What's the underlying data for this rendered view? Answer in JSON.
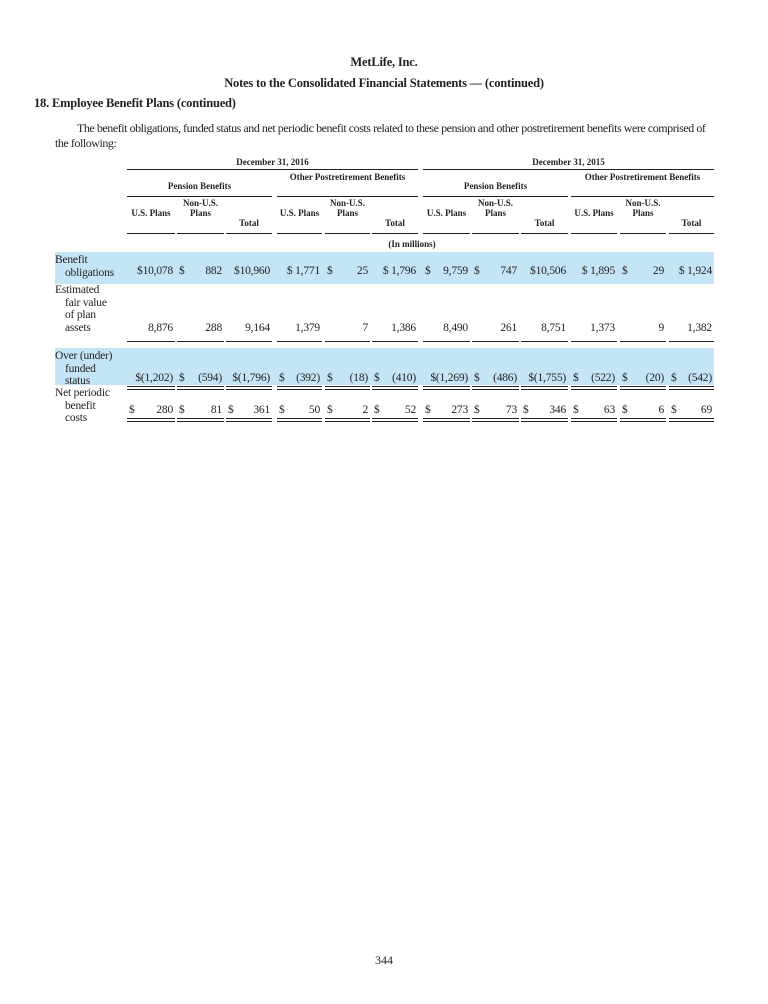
{
  "header": {
    "company": "MetLife, Inc.",
    "subtitle": "Notes to the Consolidated Financial Statements — (continued)"
  },
  "section_title": "18. Employee Benefit Plans (continued)",
  "paragraph": "The benefit obligations, funded status and net periodic benefit costs related to these pension and other postretirement benefits were comprised of the following:",
  "table": {
    "periods": [
      "December 31, 2016",
      "December 31, 2015"
    ],
    "groups": [
      "Pension Benefits",
      "Other Postretirement Benefits"
    ],
    "columns": [
      "U.S. Plans",
      "Non-U.S. Plans",
      "Total"
    ],
    "units": "(In millions)",
    "highlight_color": "#c4e5f5",
    "rows": [
      {
        "label": [
          "Benefit",
          "obligations"
        ],
        "highlight": true,
        "cells": [
          [
            "",
            "$10,078"
          ],
          [
            "$",
            "882"
          ],
          [
            "",
            "$10,960"
          ],
          [
            "",
            "$ 1,771"
          ],
          [
            "$",
            "25"
          ],
          [
            "",
            "$ 1,796"
          ],
          [
            "$",
            "9,759"
          ],
          [
            "$",
            "747"
          ],
          [
            "",
            "$10,506"
          ],
          [
            "",
            "$ 1,895"
          ],
          [
            "$",
            "29"
          ],
          [
            "",
            "$ 1,924"
          ]
        ]
      },
      {
        "label": [
          "Estimated",
          "fair value",
          "of plan",
          "assets"
        ],
        "highlight": false,
        "cells": [
          [
            "",
            "8,876"
          ],
          [
            "",
            "288"
          ],
          [
            "",
            "9,164"
          ],
          [
            "",
            "1,379"
          ],
          [
            "",
            "7"
          ],
          [
            "",
            "1,386"
          ],
          [
            "",
            "8,490"
          ],
          [
            "",
            "261"
          ],
          [
            "",
            "8,751"
          ],
          [
            "",
            "1,373"
          ],
          [
            "",
            "9"
          ],
          [
            "",
            "1,382"
          ]
        ]
      },
      {
        "label": [
          "Over (under)",
          "funded",
          "status"
        ],
        "highlight": true,
        "cells": [
          [
            "",
            "$(1,202)"
          ],
          [
            "$",
            "(594)"
          ],
          [
            "",
            "$(1,796)"
          ],
          [
            "$",
            "(392)"
          ],
          [
            "$",
            "(18)"
          ],
          [
            "$",
            "(410)"
          ],
          [
            "",
            "$(1,269)"
          ],
          [
            "$",
            "(486)"
          ],
          [
            "",
            "$(1,755)"
          ],
          [
            "$",
            "(522)"
          ],
          [
            "$",
            "(20)"
          ],
          [
            "$",
            "(542)"
          ]
        ]
      },
      {
        "label": [
          "Net periodic",
          "benefit",
          "costs"
        ],
        "highlight": false,
        "cells": [
          [
            "$",
            "280"
          ],
          [
            "$",
            "81"
          ],
          [
            "$",
            "361"
          ],
          [
            "$",
            "50"
          ],
          [
            "$",
            "2"
          ],
          [
            "$",
            "52"
          ],
          [
            "$",
            "273"
          ],
          [
            "$",
            "73"
          ],
          [
            "$",
            "346"
          ],
          [
            "$",
            "63"
          ],
          [
            "$",
            "6"
          ],
          [
            "$",
            "69"
          ]
        ]
      }
    ]
  },
  "page_number": "344"
}
